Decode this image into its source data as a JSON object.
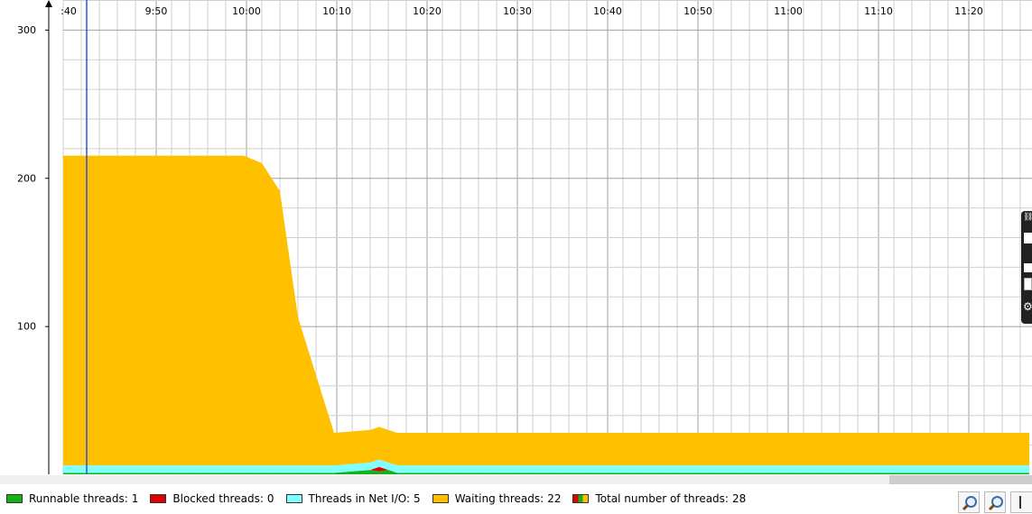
{
  "chart_data": {
    "type": "area",
    "stacked": true,
    "x": [
      "9:40",
      "9:50",
      "10:00",
      "10:02",
      "10:04",
      "10:06",
      "10:10",
      "10:14",
      "10:15",
      "10:16",
      "10:17",
      "10:20",
      "11:20",
      "11:27"
    ],
    "x_tick_labels": [
      ":40",
      "9:50",
      "10:00",
      "10:10",
      "10:20",
      "10:30",
      "10:40",
      "10:50",
      "11:00",
      "11:10",
      "11:20"
    ],
    "y_tick_labels": [
      "100",
      "200",
      "300"
    ],
    "ylim": [
      0,
      320
    ],
    "series": [
      {
        "name": "Runnable threads",
        "color": "#18b018",
        "values": [
          1,
          1,
          1,
          1,
          1,
          1,
          1,
          3,
          2,
          3,
          1,
          1,
          1,
          1
        ]
      },
      {
        "name": "Blocked threads",
        "color": "#e00000",
        "values": [
          0,
          0,
          0,
          0,
          0,
          0,
          0,
          0,
          3,
          0,
          0,
          0,
          0,
          0
        ]
      },
      {
        "name": "Threads in Net I/O",
        "color": "#80ffff",
        "values": [
          5,
          5,
          5,
          5,
          5,
          5,
          5,
          5,
          5,
          5,
          5,
          5,
          5,
          5
        ]
      },
      {
        "name": "Waiting threads",
        "color": "#ffc000",
        "values": [
          209,
          209,
          209,
          204,
          185,
          100,
          22,
          22,
          22,
          22,
          22,
          22,
          22,
          22
        ]
      }
    ],
    "marker_time": "9:42",
    "grid": true
  },
  "legend": [
    {
      "label": "Runnable threads:",
      "value": "1",
      "color": "#18b018"
    },
    {
      "label": "Blocked threads:",
      "value": "0",
      "color": "#e00000"
    },
    {
      "label": "Threads in Net I/O:",
      "value": "5",
      "color": "#80ffff"
    },
    {
      "label": "Waiting threads:",
      "value": "22",
      "color": "#ffc000"
    }
  ],
  "legend_total": {
    "label": "Total number of threads:",
    "value": "28"
  }
}
